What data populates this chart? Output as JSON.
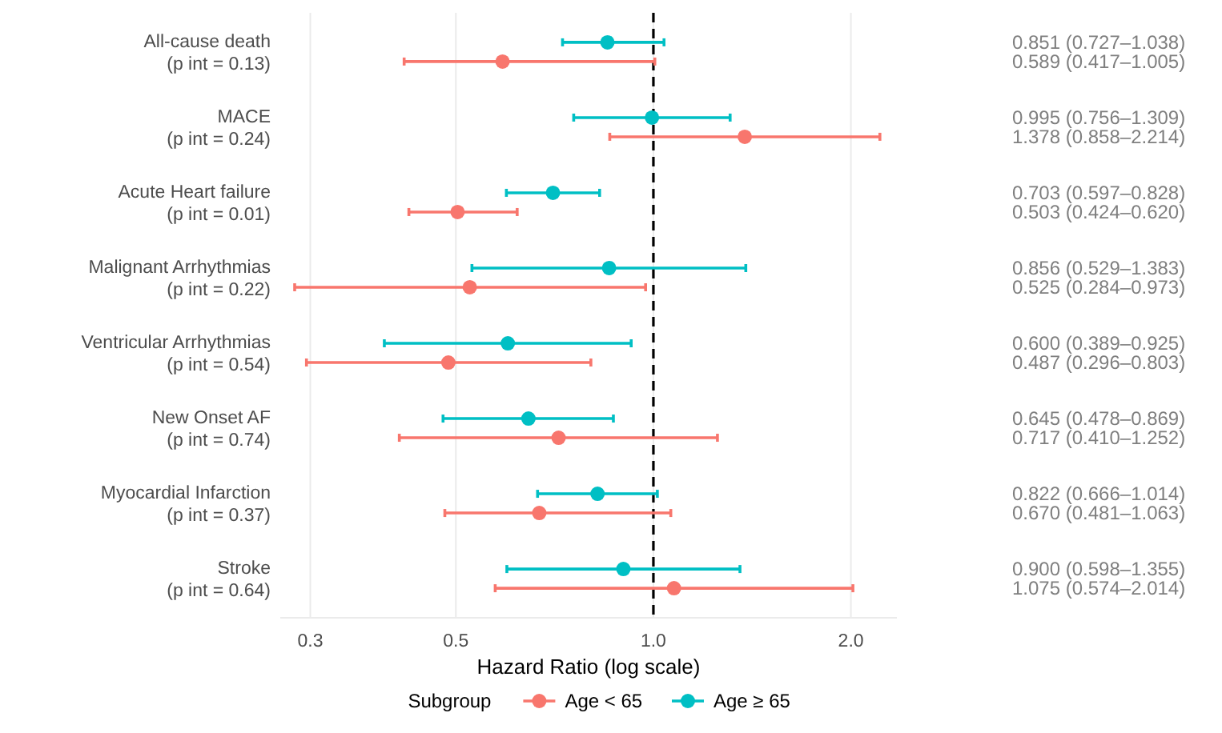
{
  "chart_data": {
    "type": "scatter",
    "orientation": "horizontal",
    "xlabel": "Hazard Ratio (log scale)",
    "legend_title": "Subgroup",
    "legend": "bottom",
    "grid": "x",
    "log": "x",
    "marker": "circle",
    "categories": [
      "All-cause death\n(p int = 0.13)",
      "MACE\n(p int = 0.24)",
      "Acute Heart failure\n(p int = 0.01)",
      "Malignant Arrhythmias\n(p int = 0.22)",
      "Ventricular Arrhythmias\n(p int = 0.54)",
      "New Onset AF\n(p int = 0.74)",
      "Myocardial Infarction\n(p int = 0.37)",
      "Stroke\n(p int = 0.64)"
    ],
    "xlim": [
      0.27,
      2.35
    ],
    "xticks": [
      0.3,
      0.5,
      {
        "value": 1,
        "label": "1.0"
      },
      {
        "value": 2,
        "label": "2.0"
      }
    ],
    "annotations": [
      "0.851 (0.727–1.038)",
      "0.589 (0.417–1.005)",
      "0.995 (0.756–1.309)",
      "1.378 (0.858–2.214)",
      "0.703 (0.597–0.828)",
      "0.503 (0.424–0.620)",
      "0.856 (0.529–1.383)",
      "0.525 (0.284–0.973)",
      "0.600 (0.389–0.925)",
      "0.487 (0.296–0.803)",
      "0.645 (0.478–0.869)",
      "0.717 (0.410–1.252)",
      "0.822 (0.666–1.014)",
      "0.670 (0.481–1.063)",
      "0.900 (0.598–1.355)",
      "1.075 (0.574–2.014)"
    ],
    "ref_lines": [
      {
        "axis": "x",
        "value": 1,
        "color": "#000000",
        "line_style": "dashed"
      }
    ],
    "series": [
      {
        "name": "Age < 65",
        "color": "#f8766d",
        "values": [
          0.589,
          1.378,
          0.503,
          0.525,
          0.487,
          0.717,
          0.67,
          1.075
        ],
        "errors": [
          [
            0.417,
            1.005
          ],
          [
            0.858,
            2.214
          ],
          [
            0.424,
            0.62
          ],
          [
            0.284,
            0.973
          ],
          [
            0.296,
            0.803
          ],
          [
            0.41,
            1.252
          ],
          [
            0.481,
            1.063
          ],
          [
            0.574,
            2.014
          ]
        ]
      },
      {
        "name": "Age ≥ 65",
        "color": "#00bfc4",
        "values": [
          0.851,
          0.995,
          0.703,
          0.856,
          0.6,
          0.645,
          0.822,
          0.9
        ],
        "errors": [
          [
            0.727,
            1.038
          ],
          [
            0.756,
            1.309
          ],
          [
            0.597,
            0.828
          ],
          [
            0.529,
            1.383
          ],
          [
            0.389,
            0.925
          ],
          [
            0.478,
            0.869
          ],
          [
            0.666,
            1.014
          ],
          [
            0.598,
            1.355
          ]
        ]
      }
    ]
  }
}
